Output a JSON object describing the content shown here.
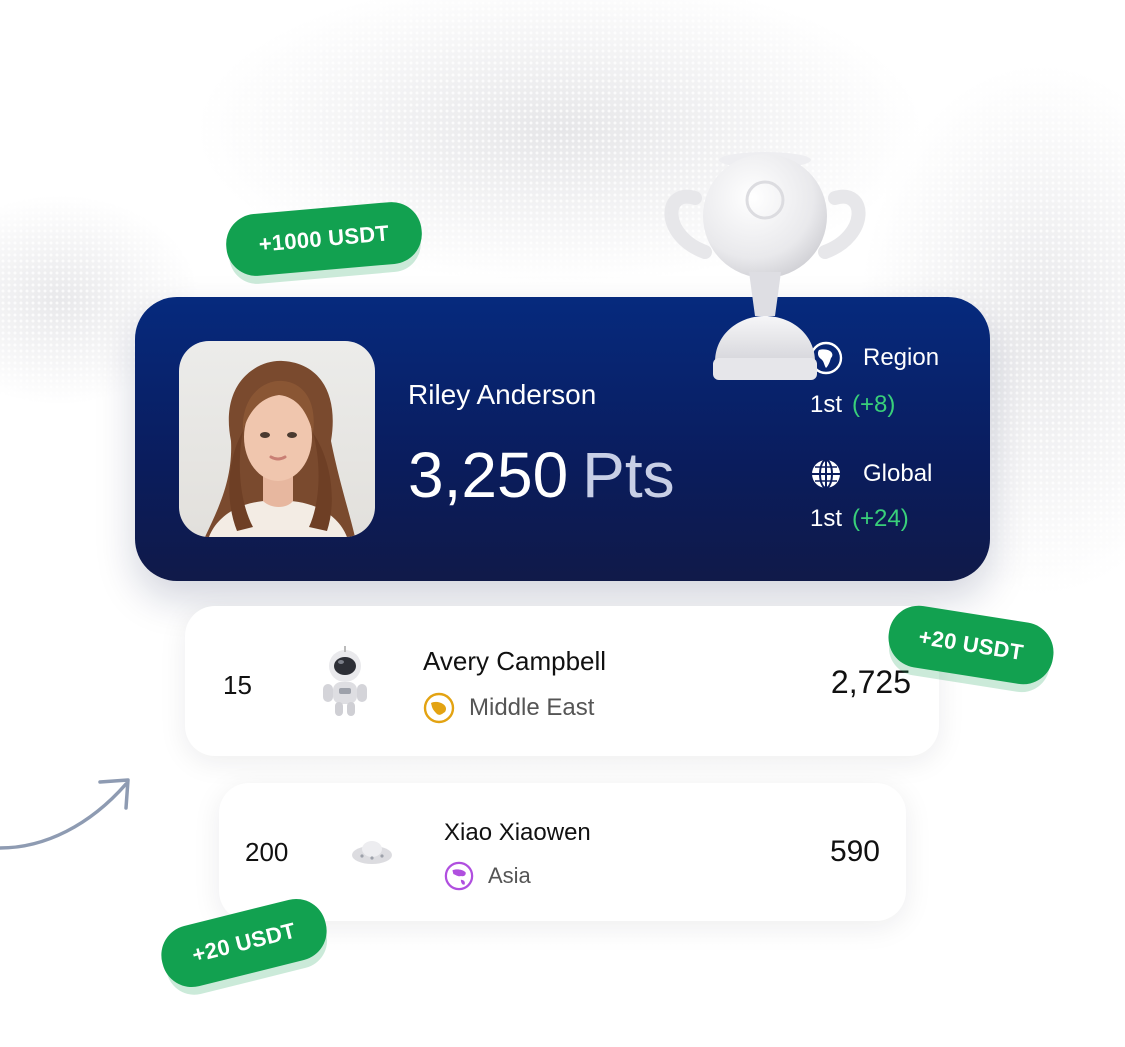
{
  "hero": {
    "name": "Riley Anderson",
    "points_value": "3,250",
    "points_unit": "Pts",
    "region": {
      "label": "Region",
      "rank": "1st",
      "delta": "(+8)"
    },
    "global": {
      "label": "Global",
      "rank": "1st",
      "delta": "(+24)"
    }
  },
  "rewards": {
    "top": "+1000 USDT",
    "card1": "+20 USDT",
    "card2": "+20 USDT"
  },
  "leaderboard": [
    {
      "rank": "15",
      "name": "Avery Campbell",
      "region": "Middle East",
      "score": "2,725",
      "region_color": "#e3a312"
    },
    {
      "rank": "200",
      "name": "Xiao Xiaowen",
      "region": "Asia",
      "score": "590",
      "region_color": "#b04fdf"
    }
  ],
  "colors": {
    "reward_green": "#12a150",
    "hero_navy": "#0a1c5c",
    "delta_green": "#39d07a"
  },
  "icons": {
    "region": "africa-globe-icon",
    "global": "globe-grid-icon",
    "middle_east": "middle-east-globe-icon",
    "asia": "asia-globe-icon"
  }
}
